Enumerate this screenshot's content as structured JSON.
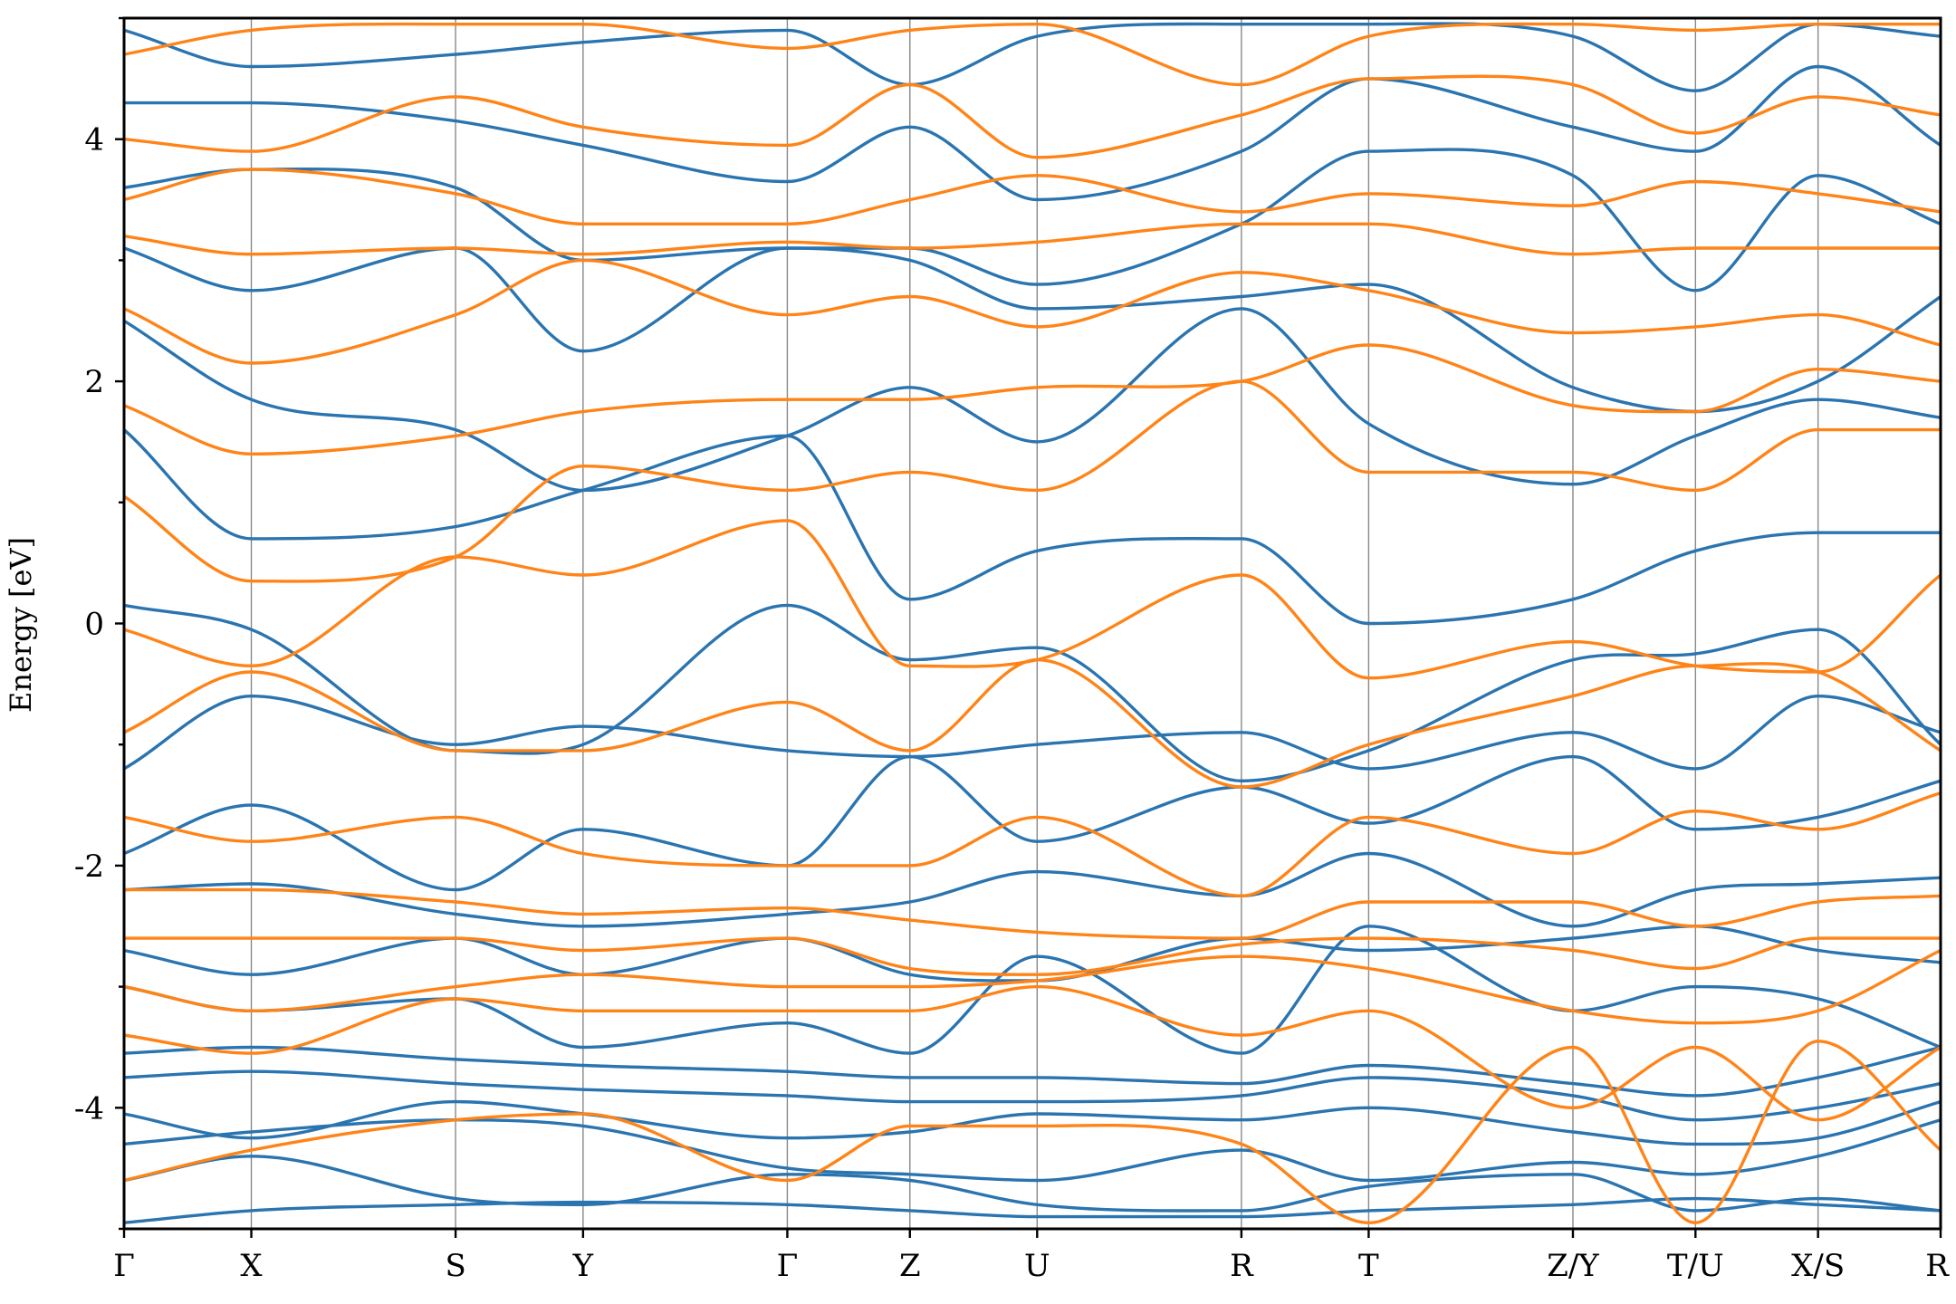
{
  "chart_data": {
    "type": "line",
    "title": "",
    "xlabel": "",
    "ylabel": "Energy [eV]",
    "ylim": [
      -5,
      5
    ],
    "yticks": [
      -4,
      -2,
      0,
      2,
      4
    ],
    "yticklabels": [
      "-4",
      "-2",
      "0",
      "2",
      "4"
    ],
    "grid": false,
    "legend": "none",
    "kpath": {
      "labels": [
        "Γ",
        "X",
        "S",
        "Y",
        "Γ",
        "Z",
        "U",
        "R",
        "T",
        "Z/Y",
        "T/U",
        "X/S",
        "R"
      ],
      "positions": [
        0,
        0.623,
        1.623,
        2.247,
        3.247,
        3.847,
        4.47,
        5.47,
        6.093,
        7.093,
        7.693,
        8.293,
        8.893
      ]
    },
    "colors": {
      "spin_up": "#2a74b0",
      "spin_down": "#ff8418",
      "kpath_line": "#888888"
    },
    "series": [
      {
        "name": "",
        "color": "#2a74b0",
        "bands": [
          [
            -4.95,
            -4.85,
            -4.8,
            -4.78,
            -4.8,
            -4.85,
            -4.9,
            -4.9,
            -4.85,
            -4.8,
            -4.75,
            -4.8,
            -4.85
          ],
          [
            -4.6,
            -4.4,
            -4.75,
            -4.8,
            -4.55,
            -4.6,
            -4.8,
            -4.85,
            -4.65,
            -4.55,
            -4.85,
            -4.75,
            -4.85
          ],
          [
            -4.3,
            -4.2,
            -4.1,
            -4.15,
            -4.5,
            -4.55,
            -4.6,
            -4.35,
            -4.6,
            -4.45,
            -4.55,
            -4.4,
            -4.1
          ],
          [
            -4.05,
            -4.25,
            -3.95,
            -4.05,
            -4.25,
            -4.2,
            -4.05,
            -4.1,
            -4.0,
            -4.2,
            -4.3,
            -4.25,
            -3.95
          ],
          [
            -3.75,
            -3.7,
            -3.8,
            -3.85,
            -3.9,
            -3.95,
            -3.95,
            -3.9,
            -3.75,
            -3.9,
            -4.1,
            -4.0,
            -3.8
          ],
          [
            -3.55,
            -3.5,
            -3.6,
            -3.65,
            -3.7,
            -3.75,
            -3.75,
            -3.8,
            -3.65,
            -3.8,
            -3.9,
            -3.75,
            -3.5
          ],
          [
            -3.0,
            -3.2,
            -3.1,
            -3.5,
            -3.3,
            -3.55,
            -2.75,
            -3.55,
            -2.5,
            -3.2,
            -3.0,
            -3.1,
            -3.5
          ],
          [
            -2.7,
            -2.9,
            -2.6,
            -2.9,
            -2.6,
            -2.9,
            -2.95,
            -2.6,
            -2.7,
            -2.6,
            -2.5,
            -2.7,
            -2.8
          ],
          [
            -2.2,
            -2.15,
            -2.4,
            -2.5,
            -2.4,
            -2.3,
            -2.05,
            -2.25,
            -1.9,
            -2.5,
            -2.2,
            -2.15,
            -2.1
          ],
          [
            -1.9,
            -1.5,
            -2.2,
            -1.7,
            -2.0,
            -1.1,
            -1.8,
            -1.35,
            -1.65,
            -1.1,
            -1.7,
            -1.6,
            -1.3
          ],
          [
            -1.2,
            -0.6,
            -1.0,
            -0.85,
            -1.05,
            -1.1,
            -1.0,
            -0.9,
            -1.2,
            -0.9,
            -1.2,
            -0.6,
            -0.9
          ],
          [
            0.15,
            -0.05,
            -1.05,
            -1.0,
            0.15,
            -0.3,
            -0.2,
            -1.3,
            -1.05,
            -0.3,
            -0.25,
            -0.05,
            -1.0
          ],
          [
            1.6,
            0.7,
            0.8,
            1.1,
            1.55,
            0.2,
            0.6,
            0.7,
            0.0,
            0.2,
            0.6,
            0.75,
            0.75
          ],
          [
            2.5,
            1.85,
            1.6,
            1.1,
            1.55,
            1.95,
            1.5,
            2.6,
            1.65,
            1.15,
            1.55,
            1.85,
            1.7
          ],
          [
            3.1,
            2.75,
            3.1,
            2.25,
            3.1,
            3.0,
            2.6,
            2.7,
            2.8,
            1.95,
            1.75,
            2.0,
            2.7
          ],
          [
            3.6,
            3.75,
            3.6,
            3.0,
            3.1,
            3.1,
            2.8,
            3.3,
            3.9,
            3.7,
            2.75,
            3.7,
            3.3
          ],
          [
            4.3,
            4.3,
            4.15,
            3.95,
            3.65,
            4.1,
            3.5,
            3.9,
            4.5,
            4.1,
            3.9,
            4.6,
            3.95
          ],
          [
            4.9,
            4.6,
            4.7,
            4.8,
            4.9,
            4.45,
            4.85,
            4.95,
            4.95,
            4.85,
            4.4,
            4.95,
            4.85
          ]
        ]
      },
      {
        "name": "",
        "color": "#ff8418",
        "bands": [
          [
            -4.6,
            -4.35,
            -4.1,
            -4.05,
            -4.6,
            -4.15,
            -4.15,
            -4.3,
            -4.95,
            -3.5,
            -4.95,
            -3.45,
            -4.35
          ],
          [
            -3.4,
            -3.55,
            -3.1,
            -3.2,
            -3.2,
            -3.2,
            -3.0,
            -3.4,
            -3.2,
            -4.0,
            -3.5,
            -4.1,
            -3.5
          ],
          [
            -3.0,
            -3.2,
            -3.0,
            -2.9,
            -3.0,
            -3.0,
            -2.95,
            -2.75,
            -2.85,
            -3.2,
            -3.3,
            -3.2,
            -2.7
          ],
          [
            -2.6,
            -2.6,
            -2.6,
            -2.7,
            -2.6,
            -2.85,
            -2.9,
            -2.65,
            -2.6,
            -2.7,
            -2.85,
            -2.6,
            -2.6
          ],
          [
            -2.2,
            -2.2,
            -2.3,
            -2.4,
            -2.35,
            -2.45,
            -2.55,
            -2.6,
            -2.3,
            -2.3,
            -2.5,
            -2.3,
            -2.25
          ],
          [
            -1.6,
            -1.8,
            -1.6,
            -1.9,
            -2.0,
            -2.0,
            -1.6,
            -2.25,
            -1.6,
            -1.9,
            -1.55,
            -1.7,
            -1.4
          ],
          [
            -0.9,
            -0.4,
            -1.05,
            -1.05,
            -0.65,
            -1.05,
            -0.3,
            -1.35,
            -1.0,
            -0.6,
            -0.35,
            -0.4,
            -1.05
          ],
          [
            -0.05,
            -0.35,
            0.55,
            0.4,
            0.85,
            -0.35,
            -0.3,
            0.4,
            -0.45,
            -0.15,
            -0.35,
            -0.4,
            0.4
          ],
          [
            1.05,
            0.35,
            0.55,
            1.3,
            1.1,
            1.25,
            1.1,
            2.0,
            1.25,
            1.25,
            1.1,
            1.6,
            1.6
          ],
          [
            1.8,
            1.4,
            1.55,
            1.75,
            1.85,
            1.85,
            1.95,
            2.0,
            2.3,
            1.8,
            1.75,
            2.1,
            2.0
          ],
          [
            2.6,
            2.15,
            2.55,
            3.0,
            2.55,
            2.7,
            2.45,
            2.9,
            2.75,
            2.4,
            2.45,
            2.55,
            2.3
          ],
          [
            3.2,
            3.05,
            3.1,
            3.05,
            3.15,
            3.1,
            3.15,
            3.3,
            3.3,
            3.05,
            3.1,
            3.1,
            3.1
          ],
          [
            3.5,
            3.75,
            3.55,
            3.3,
            3.3,
            3.5,
            3.7,
            3.4,
            3.55,
            3.45,
            3.65,
            3.55,
            3.4
          ],
          [
            4.0,
            3.9,
            4.35,
            4.1,
            3.95,
            4.45,
            3.85,
            4.2,
            4.5,
            4.45,
            4.05,
            4.35,
            4.2
          ],
          [
            4.7,
            4.9,
            4.95,
            4.95,
            4.75,
            4.9,
            4.95,
            4.45,
            4.85,
            4.95,
            4.9,
            4.95,
            4.95
          ]
        ]
      }
    ]
  }
}
